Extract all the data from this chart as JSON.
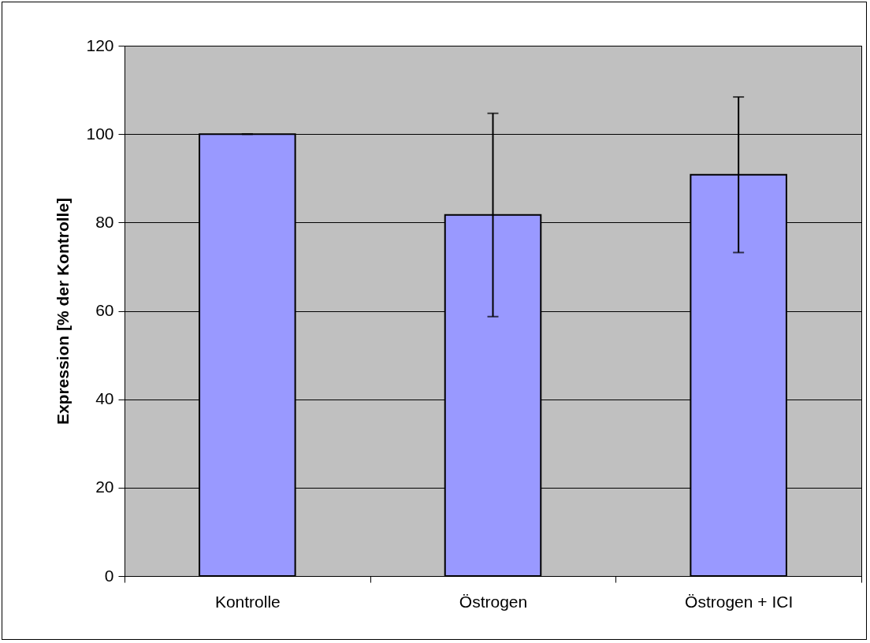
{
  "chart_data": {
    "type": "bar",
    "ylabel": "Expression [% der Kontrolle]",
    "categories": [
      "Kontrolle",
      "Östrogen",
      "Östrogen + ICI"
    ],
    "values": [
      100,
      81.7,
      90.8
    ],
    "errors": [
      0,
      23,
      17.6
    ],
    "color": "#9999ff",
    "ylim": [
      0,
      120
    ],
    "yticks": [
      0,
      20,
      40,
      60,
      80,
      100,
      120
    ],
    "grid": "y"
  }
}
